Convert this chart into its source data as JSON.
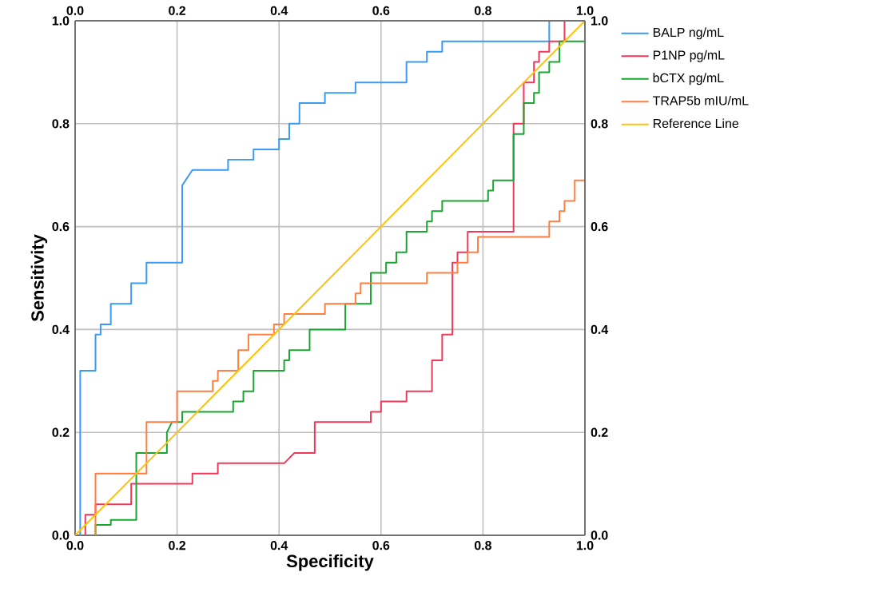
{
  "chart_data": {
    "type": "line",
    "xlabel": "Specificity",
    "ylabel": "Sensitivity",
    "grid": true,
    "legend": "right",
    "marker": "none",
    "xlim": [
      0,
      1
    ],
    "ylim": [
      0,
      1
    ],
    "x2lim": [
      0,
      1
    ],
    "y2lim": [
      0,
      1
    ],
    "xticks": [
      {
        "value": 0,
        "label": "0.0"
      },
      {
        "value": 0.2,
        "label": "0.2"
      },
      {
        "value": 0.4,
        "label": "0.4"
      },
      {
        "value": 0.6,
        "label": "0.6"
      },
      {
        "value": 0.8,
        "label": "0.8"
      },
      {
        "value": 1,
        "label": "1.0"
      }
    ],
    "yticks": [
      {
        "value": 0,
        "label": "0.0"
      },
      {
        "value": 0.2,
        "label": "0.2"
      },
      {
        "value": 0.4,
        "label": "0.4"
      },
      {
        "value": 0.6,
        "label": "0.6"
      },
      {
        "value": 0.8,
        "label": "0.8"
      },
      {
        "value": 1,
        "label": "1.0"
      }
    ],
    "x2ticks": [
      {
        "value": 0,
        "label": "0.0"
      },
      {
        "value": 0.2,
        "label": "0.2"
      },
      {
        "value": 0.4,
        "label": "0.4"
      },
      {
        "value": 0.6,
        "label": "0.6"
      },
      {
        "value": 0.8,
        "label": "0.8"
      },
      {
        "value": 1,
        "label": "1.0"
      }
    ],
    "y2ticks": [
      {
        "value": 0,
        "label": "0.0"
      },
      {
        "value": 0.2,
        "label": "0.2"
      },
      {
        "value": 0.4,
        "label": "0.4"
      },
      {
        "value": 0.6,
        "label": "0.6"
      },
      {
        "value": 0.8,
        "label": "0.8"
      },
      {
        "value": 1,
        "label": "1.0"
      }
    ],
    "series": [
      {
        "name": "BALP  ng/mL",
        "color": "#3a9bf0",
        "x": [
          0.01,
          0.01,
          0.04,
          0.04,
          0.05,
          0.05,
          0.07,
          0.07,
          0.11,
          0.11,
          0.14,
          0.14,
          0.21,
          0.21,
          0.23,
          0.3,
          0.3,
          0.35,
          0.35,
          0.4,
          0.4,
          0.42,
          0.42,
          0.44,
          0.44,
          0.49,
          0.49,
          0.55,
          0.55,
          0.65,
          0.65,
          0.69,
          0.69,
          0.72,
          0.72,
          0.93,
          0.93,
          1.0
        ],
        "values": [
          0,
          0.32,
          0.32,
          0.39,
          0.39,
          0.41,
          0.41,
          0.45,
          0.45,
          0.49,
          0.49,
          0.53,
          0.53,
          0.68,
          0.71,
          0.71,
          0.73,
          0.73,
          0.75,
          0.75,
          0.77,
          0.77,
          0.8,
          0.8,
          0.84,
          0.84,
          0.86,
          0.86,
          0.88,
          0.88,
          0.92,
          0.92,
          0.94,
          0.94,
          0.96,
          0.96,
          1.0,
          1.0
        ]
      },
      {
        "name": "P1NP pg/mL",
        "color": "#f0385a",
        "x": [
          0.02,
          0.02,
          0.04,
          0.04,
          0.11,
          0.11,
          0.23,
          0.23,
          0.28,
          0.28,
          0.41,
          0.43,
          0.47,
          0.47,
          0.58,
          0.58,
          0.6,
          0.6,
          0.65,
          0.65,
          0.7,
          0.7,
          0.72,
          0.72,
          0.74,
          0.74,
          0.75,
          0.75,
          0.77,
          0.77,
          0.86,
          0.86,
          0.88,
          0.88,
          0.9,
          0.9,
          0.91,
          0.91,
          0.93,
          0.93,
          0.96,
          0.96,
          1.0
        ],
        "values": [
          0,
          0.04,
          0.04,
          0.06,
          0.06,
          0.1,
          0.1,
          0.12,
          0.12,
          0.14,
          0.14,
          0.16,
          0.16,
          0.22,
          0.22,
          0.24,
          0.24,
          0.26,
          0.26,
          0.28,
          0.28,
          0.34,
          0.34,
          0.39,
          0.39,
          0.53,
          0.53,
          0.55,
          0.55,
          0.59,
          0.59,
          0.8,
          0.8,
          0.88,
          0.88,
          0.92,
          0.92,
          0.94,
          0.94,
          0.96,
          0.96,
          1.0,
          1.0
        ]
      },
      {
        "name": "bCTX pg/mL",
        "color": "#1aa531",
        "x": [
          0.04,
          0.04,
          0.07,
          0.07,
          0.12,
          0.12,
          0.18,
          0.18,
          0.19,
          0.21,
          0.21,
          0.31,
          0.31,
          0.33,
          0.33,
          0.35,
          0.35,
          0.41,
          0.41,
          0.42,
          0.42,
          0.46,
          0.46,
          0.53,
          0.53,
          0.58,
          0.58,
          0.61,
          0.61,
          0.63,
          0.63,
          0.65,
          0.65,
          0.69,
          0.69,
          0.7,
          0.7,
          0.72,
          0.72,
          0.81,
          0.81,
          0.82,
          0.82,
          0.86,
          0.86,
          0.88,
          0.88,
          0.9,
          0.9,
          0.91,
          0.91,
          0.93,
          0.93,
          0.95,
          0.95,
          1.0,
          1.0
        ],
        "values": [
          0,
          0.02,
          0.02,
          0.03,
          0.03,
          0.16,
          0.16,
          0.2,
          0.22,
          0.22,
          0.24,
          0.24,
          0.26,
          0.26,
          0.28,
          0.28,
          0.32,
          0.32,
          0.34,
          0.34,
          0.36,
          0.36,
          0.4,
          0.4,
          0.45,
          0.45,
          0.51,
          0.51,
          0.53,
          0.53,
          0.55,
          0.55,
          0.59,
          0.59,
          0.61,
          0.61,
          0.63,
          0.63,
          0.65,
          0.65,
          0.67,
          0.67,
          0.69,
          0.69,
          0.78,
          0.78,
          0.84,
          0.84,
          0.86,
          0.86,
          0.9,
          0.9,
          0.92,
          0.92,
          0.96,
          0.96,
          1.0
        ]
      },
      {
        "name": "TRAP5b mIU/mL",
        "color": "#ff7f41",
        "x": [
          0.04,
          0.04,
          0.14,
          0.14,
          0.2,
          0.2,
          0.27,
          0.27,
          0.28,
          0.28,
          0.32,
          0.32,
          0.34,
          0.34,
          0.39,
          0.39,
          0.41,
          0.41,
          0.49,
          0.49,
          0.55,
          0.55,
          0.56,
          0.56,
          0.69,
          0.69,
          0.75,
          0.75,
          0.77,
          0.77,
          0.79,
          0.79,
          0.93,
          0.93,
          0.95,
          0.95,
          0.96,
          0.96,
          0.98,
          0.98,
          1.0,
          1.0
        ],
        "values": [
          0,
          0.12,
          0.12,
          0.22,
          0.22,
          0.28,
          0.28,
          0.3,
          0.3,
          0.32,
          0.32,
          0.36,
          0.36,
          0.39,
          0.39,
          0.41,
          0.41,
          0.43,
          0.43,
          0.45,
          0.45,
          0.47,
          0.47,
          0.49,
          0.49,
          0.51,
          0.51,
          0.53,
          0.53,
          0.55,
          0.55,
          0.58,
          0.58,
          0.61,
          0.61,
          0.63,
          0.63,
          0.65,
          0.65,
          0.69,
          0.69,
          1.0
        ]
      },
      {
        "name": "Reference Line",
        "color": "#ffc20e",
        "x": [
          0,
          1
        ],
        "values": [
          0,
          1
        ]
      }
    ]
  }
}
